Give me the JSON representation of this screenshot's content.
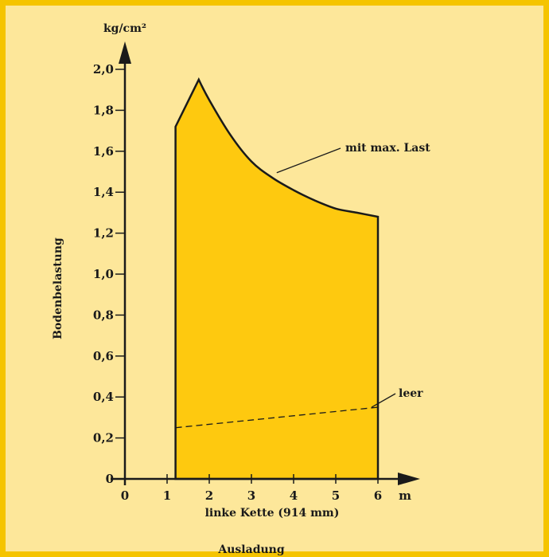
{
  "chart_data": {
    "type": "area",
    "title": "",
    "ylabel": "Bodenbelastung",
    "yunit": "kg/cm²",
    "xunit": "m",
    "xlabel": "linke Kette (914 mm)",
    "footer": "Ausladung",
    "xlim": [
      0,
      6.6
    ],
    "ylim": [
      0,
      2.15
    ],
    "xticks": [
      0,
      1,
      2,
      3,
      4,
      5,
      6
    ],
    "xtick_labels": [
      "0",
      "1",
      "2",
      "3",
      "4",
      "5",
      "6"
    ],
    "yticks": [
      0,
      0.2,
      0.4,
      0.6,
      0.8,
      1.0,
      1.2,
      1.4,
      1.6,
      1.8,
      2.0
    ],
    "ytick_labels": [
      "0",
      "0,2",
      "0,4",
      "0,6",
      "0,8",
      "1,0",
      "1,2",
      "1,4",
      "1,6",
      "1,8",
      "2,0"
    ],
    "grid": false,
    "series": [
      {
        "name": "mit max. Last",
        "style": "solid-filled",
        "x": [
          1.2,
          1.2,
          1.75,
          2.0,
          2.5,
          3.0,
          3.5,
          4.0,
          4.5,
          5.0,
          5.5,
          6.0,
          6.0
        ],
        "y": [
          0,
          1.72,
          1.95,
          1.85,
          1.68,
          1.55,
          1.47,
          1.41,
          1.36,
          1.32,
          1.3,
          1.28,
          0
        ]
      },
      {
        "name": "leer",
        "style": "dashed",
        "x": [
          1.2,
          6.0
        ],
        "y": [
          0.25,
          0.35
        ]
      }
    ],
    "annotations": [
      {
        "text": "mit max. Last",
        "series": 0
      },
      {
        "text": "leer",
        "series": 1
      }
    ],
    "colors": {
      "fill": "#fec90f",
      "line": "#1a1a1a",
      "background": "#fde79a",
      "border": "#f5c400"
    }
  }
}
